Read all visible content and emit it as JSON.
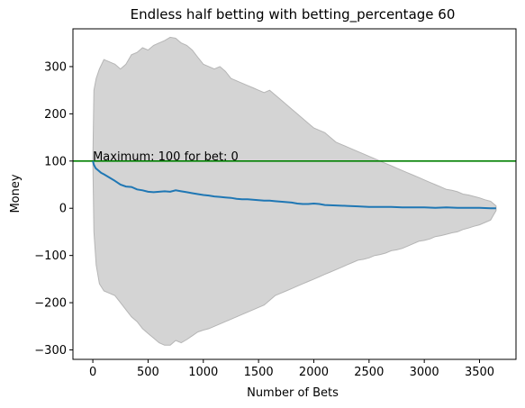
{
  "chart_data": {
    "type": "area",
    "title": "Endless half betting with betting_percentage 60",
    "xlabel": "Number of Bets",
    "ylabel": "Money",
    "xlim": [
      -180,
      3830
    ],
    "ylim": [
      -320,
      380
    ],
    "xticks": [
      0,
      500,
      1000,
      1500,
      2000,
      2500,
      3000,
      3500
    ],
    "yticks": [
      -300,
      -200,
      -100,
      0,
      100,
      200,
      300
    ],
    "grid": false,
    "legend": "none",
    "series": [
      {
        "type": "band",
        "color": "#d4d4d4",
        "edge_color": "#b5b5b5",
        "x": [
          0,
          10,
          30,
          60,
          100,
          150,
          200,
          250,
          300,
          350,
          400,
          450,
          500,
          550,
          600,
          650,
          700,
          750,
          800,
          850,
          900,
          950,
          1000,
          1050,
          1100,
          1150,
          1200,
          1250,
          1300,
          1350,
          1400,
          1450,
          1500,
          1550,
          1600,
          1650,
          1700,
          1750,
          1800,
          1850,
          1900,
          1950,
          2000,
          2050,
          2100,
          2150,
          2200,
          2250,
          2300,
          2350,
          2400,
          2450,
          2500,
          2550,
          2600,
          2650,
          2700,
          2750,
          2800,
          2850,
          2900,
          2950,
          3000,
          3050,
          3100,
          3150,
          3200,
          3250,
          3300,
          3350,
          3400,
          3450,
          3500,
          3550,
          3600,
          3650
        ],
        "upper": [
          100,
          250,
          275,
          295,
          315,
          310,
          305,
          295,
          305,
          325,
          330,
          340,
          335,
          345,
          350,
          355,
          362,
          360,
          350,
          345,
          335,
          320,
          305,
          300,
          295,
          300,
          290,
          275,
          270,
          265,
          260,
          255,
          250,
          245,
          250,
          240,
          230,
          220,
          210,
          200,
          190,
          180,
          170,
          165,
          160,
          150,
          140,
          135,
          130,
          125,
          120,
          115,
          110,
          105,
          100,
          95,
          90,
          85,
          80,
          75,
          70,
          65,
          60,
          55,
          50,
          45,
          40,
          38,
          35,
          30,
          28,
          25,
          22,
          18,
          15,
          5
        ],
        "lower": [
          100,
          -50,
          -120,
          -160,
          -175,
          -180,
          -185,
          -200,
          -215,
          -230,
          -240,
          -255,
          -265,
          -275,
          -285,
          -290,
          -290,
          -280,
          -285,
          -278,
          -270,
          -262,
          -258,
          -255,
          -250,
          -245,
          -240,
          -235,
          -230,
          -225,
          -220,
          -215,
          -210,
          -205,
          -195,
          -185,
          -180,
          -175,
          -170,
          -165,
          -160,
          -155,
          -150,
          -145,
          -140,
          -135,
          -130,
          -125,
          -120,
          -115,
          -110,
          -108,
          -105,
          -100,
          -98,
          -95,
          -90,
          -88,
          -85,
          -80,
          -75,
          -70,
          -68,
          -65,
          -60,
          -58,
          -55,
          -52,
          -50,
          -45,
          -42,
          -38,
          -35,
          -30,
          -25,
          -5
        ]
      },
      {
        "type": "line",
        "color": "#1f77b4",
        "x": [
          0,
          10,
          25,
          50,
          75,
          100,
          150,
          200,
          250,
          300,
          350,
          400,
          450,
          500,
          550,
          600,
          650,
          700,
          750,
          800,
          850,
          900,
          950,
          1000,
          1050,
          1100,
          1150,
          1200,
          1250,
          1300,
          1350,
          1400,
          1450,
          1500,
          1550,
          1600,
          1650,
          1700,
          1750,
          1800,
          1850,
          1900,
          1950,
          2000,
          2050,
          2100,
          2200,
          2300,
          2400,
          2500,
          2600,
          2700,
          2800,
          2900,
          3000,
          3100,
          3200,
          3300,
          3400,
          3500,
          3600,
          3650
        ],
        "values": [
          100,
          92,
          85,
          80,
          75,
          72,
          65,
          58,
          50,
          46,
          45,
          40,
          38,
          35,
          34,
          35,
          36,
          35,
          38,
          36,
          34,
          32,
          30,
          28,
          27,
          25,
          24,
          23,
          22,
          20,
          19,
          19,
          18,
          17,
          16,
          16,
          15,
          14,
          13,
          12,
          10,
          9,
          9,
          10,
          9,
          7,
          6,
          5,
          4,
          3,
          3,
          3,
          2,
          2,
          2,
          1,
          2,
          1,
          1,
          1,
          0,
          0
        ]
      },
      {
        "type": "hline",
        "color": "#008000",
        "y": 100
      }
    ],
    "annotations": [
      {
        "text": "Maximum: 100 for bet: 0",
        "x": 0,
        "y": 100
      }
    ]
  }
}
